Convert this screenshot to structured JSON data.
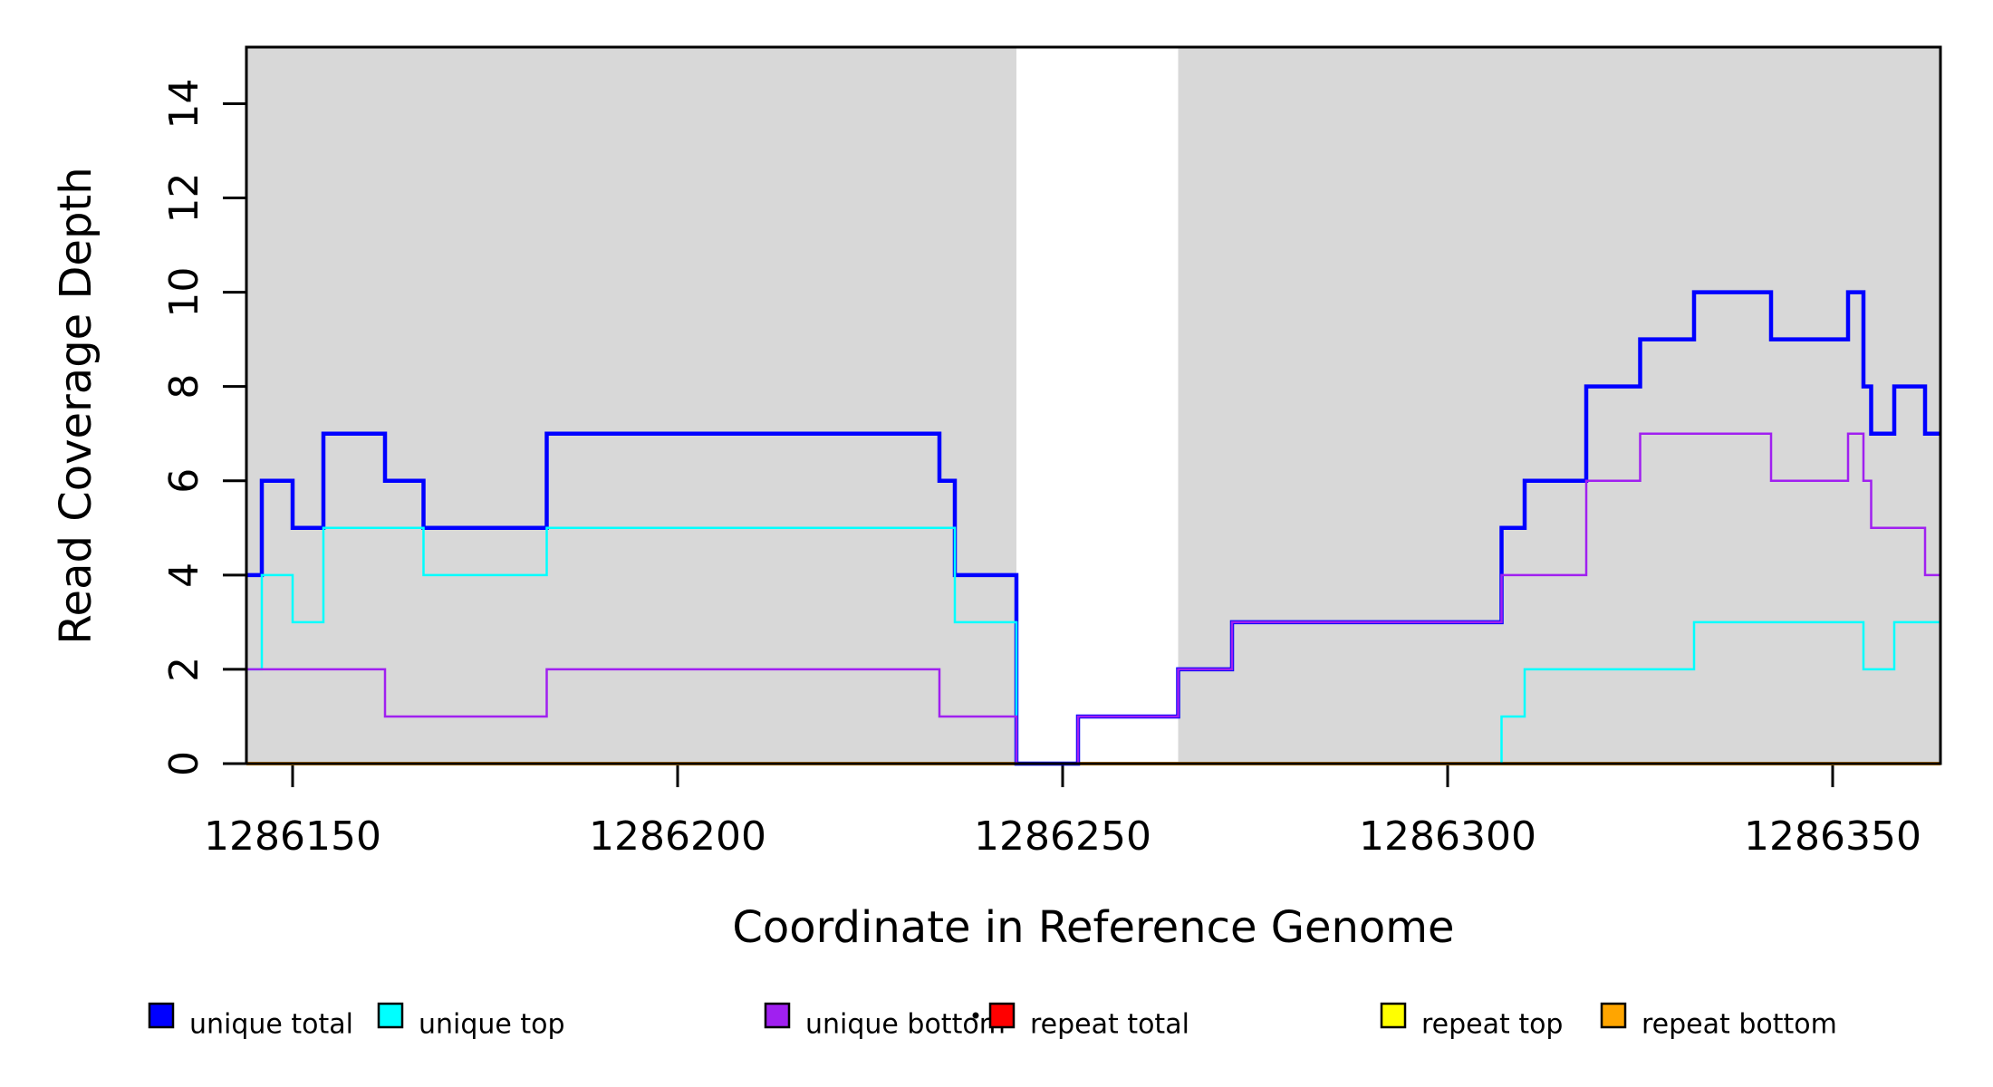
{
  "figure": {
    "background": "#FFFFFF"
  },
  "chart_data": {
    "type": "line",
    "subtype": "step",
    "title": "",
    "xlabel": "Coordinate in Reference Genome",
    "ylabel": "Read Coverage Depth",
    "xlim": [
      1286144,
      1286364
    ],
    "ylim": [
      0,
      15.2
    ],
    "x_ticks": [
      1286150,
      1286200,
      1286250,
      1286300,
      1286350
    ],
    "x_tick_labels": [
      "1286150",
      "1286200",
      "1286250",
      "1286300",
      "1286350"
    ],
    "y_ticks": [
      0,
      2,
      4,
      6,
      8,
      10,
      12,
      14
    ],
    "y_tick_labels": [
      "0",
      "2",
      "4",
      "6",
      "8",
      "10",
      "12",
      "14"
    ],
    "grid": false,
    "legend_position": "bottom",
    "shaded_regions": [
      {
        "x_start": 1286144,
        "x_end": 1286244,
        "color": "#D8D8D8"
      },
      {
        "x_start": 1286265,
        "x_end": 1286364,
        "color": "#D8D8D8"
      }
    ],
    "series": [
      {
        "name": "repeat total",
        "color": "#FF0000",
        "line_width": 2.5,
        "steps": [
          [
            1286144,
            0
          ]
        ]
      },
      {
        "name": "repeat top",
        "color": "#FFFF00",
        "line_width": 2.5,
        "steps": [
          [
            1286144,
            0
          ]
        ]
      },
      {
        "name": "repeat bottom",
        "color": "#FFA500",
        "line_width": 4,
        "steps": [
          [
            1286144,
            0
          ]
        ]
      },
      {
        "name": "unique total",
        "color": "#0000FF",
        "line_width": 4.5,
        "steps": [
          [
            1286144,
            4
          ],
          [
            1286146,
            6
          ],
          [
            1286150,
            5
          ],
          [
            1286154,
            7
          ],
          [
            1286162,
            6
          ],
          [
            1286167,
            5
          ],
          [
            1286183,
            7
          ],
          [
            1286234,
            6
          ],
          [
            1286236,
            4
          ],
          [
            1286244,
            0
          ],
          [
            1286252,
            1
          ],
          [
            1286265,
            2
          ],
          [
            1286272,
            3
          ],
          [
            1286307,
            5
          ],
          [
            1286310,
            6
          ],
          [
            1286318,
            8
          ],
          [
            1286325,
            9
          ],
          [
            1286332,
            10
          ],
          [
            1286342,
            9
          ],
          [
            1286352,
            10
          ],
          [
            1286354,
            8
          ],
          [
            1286355,
            7
          ],
          [
            1286358,
            8
          ],
          [
            1286362,
            7
          ]
        ]
      },
      {
        "name": "unique top",
        "color": "#00FFFF",
        "line_width": 2.5,
        "steps": [
          [
            1286144,
            2
          ],
          [
            1286146,
            4
          ],
          [
            1286150,
            3
          ],
          [
            1286154,
            5
          ],
          [
            1286167,
            4
          ],
          [
            1286183,
            5
          ],
          [
            1286236,
            3
          ],
          [
            1286244,
            0
          ],
          [
            1286307,
            1
          ],
          [
            1286310,
            2
          ],
          [
            1286332,
            3
          ],
          [
            1286354,
            2
          ],
          [
            1286358,
            3
          ]
        ]
      },
      {
        "name": "unique bottom",
        "color": "#A020F0",
        "line_width": 2.5,
        "steps": [
          [
            1286144,
            2
          ],
          [
            1286162,
            1
          ],
          [
            1286183,
            2
          ],
          [
            1286234,
            1
          ],
          [
            1286244,
            0
          ],
          [
            1286252,
            1
          ],
          [
            1286265,
            2
          ],
          [
            1286272,
            3
          ],
          [
            1286307,
            4
          ],
          [
            1286318,
            6
          ],
          [
            1286325,
            7
          ],
          [
            1286342,
            6
          ],
          [
            1286352,
            7
          ],
          [
            1286354,
            6
          ],
          [
            1286355,
            5
          ],
          [
            1286362,
            4
          ]
        ]
      }
    ]
  },
  "legend": {
    "items": [
      {
        "label": "unique total",
        "color": "#0000FF"
      },
      {
        "label": "unique top",
        "color": "#00FFFF"
      },
      {
        "label": "unique bottom",
        "color": "#A020F0"
      },
      {
        "label": "repeat total",
        "color": "#FF0000"
      },
      {
        "label": "repeat top",
        "color": "#FFFF00"
      },
      {
        "label": "repeat bottom",
        "color": "#FFA500"
      }
    ]
  }
}
